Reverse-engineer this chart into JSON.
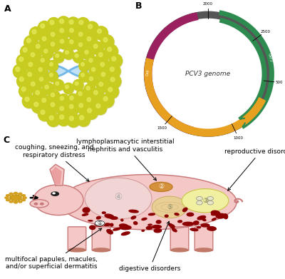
{
  "panel_A_label": "A",
  "panel_B_label": "B",
  "panel_C_label": "C",
  "genome_label": "PCV3 genome",
  "arc_magenta_color": "#9B2060",
  "arc_green_color": "#2E8B50",
  "arc_orange_color": "#E8A020",
  "capsid_color": "#C8CC20",
  "capsid_highlight": "#E8EC60",
  "capsid_shadow": "#909000",
  "capsid_dna_color": "#70B8E8",
  "capsid_dna_fill": "#A8D4F0",
  "pig_body_color": "#F5C8C8",
  "pig_outline_color": "#C87878",
  "pig_ear_inner": "#EAA0A0",
  "blood_color": "#8B0000",
  "virus_color": "#D4A020",
  "kidney_color": "#D4903A",
  "uterus_color": "#F0F0A0",
  "intestine_color": "#E8D090",
  "lung_color": "#F0D8D8",
  "lung_label": "coughing, sneezing, and\nrespiratory distress",
  "skin_label": "multifocal papules, macules,\nand/or superficial dermatitis",
  "kidney_label": "lymphoplasmacytic interstitial\nnephritis and vasculitis",
  "repro_label": "reproductive disorders",
  "digest_label": "digestive disorders",
  "background": "#FFFFFF",
  "font_size_labels": 6.5,
  "font_size_panel": 9,
  "ring_color": "#555555",
  "ring_outer": 0.43,
  "ring_inner": 0.38
}
